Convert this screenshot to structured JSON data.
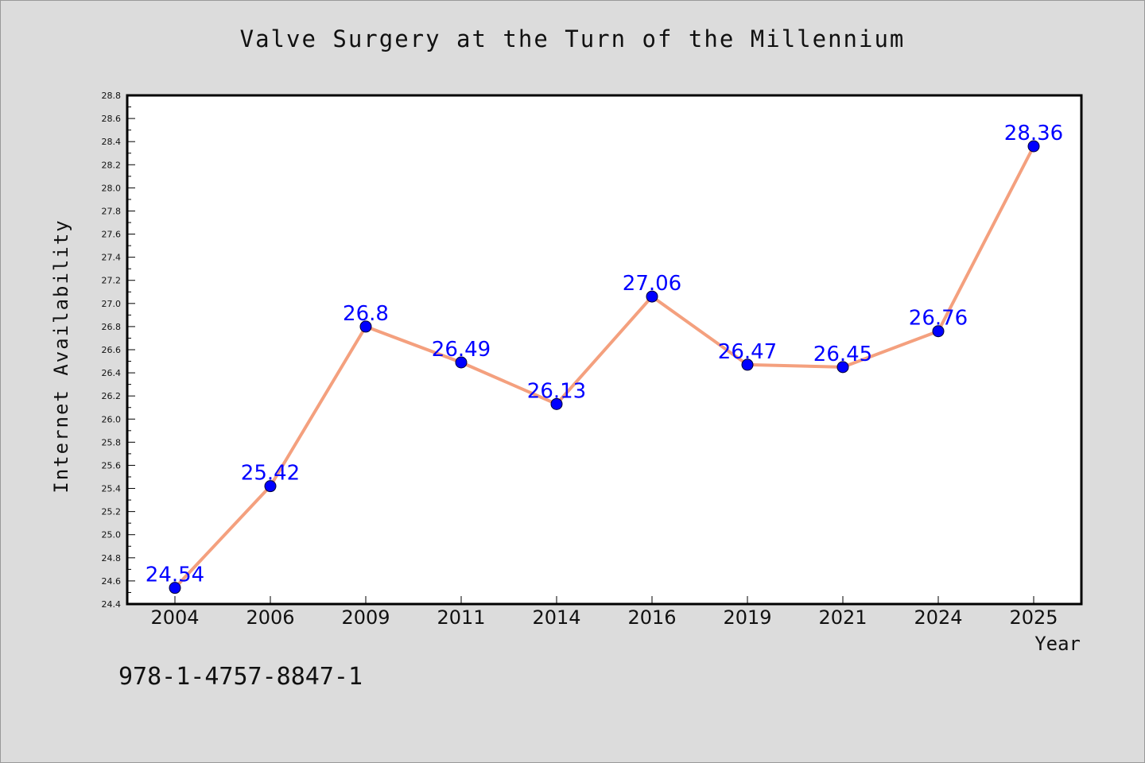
{
  "title": "Valve Surgery at the Turn of the Millennium",
  "footer_text": "978-1-4757-8847-1",
  "colors": {
    "background": "#dcdcdc",
    "plot_background": "#ffffff",
    "line": "#f4a07e",
    "marker": "#0000ff",
    "data_label": "#0000ff"
  },
  "chart_data": {
    "type": "line",
    "title": "Valve Surgery at the Turn of the Millennium",
    "xlabel": "Year",
    "ylabel": "Internet Availability",
    "categories": [
      "2004",
      "2006",
      "2009",
      "2011",
      "2014",
      "2016",
      "2019",
      "2021",
      "2024",
      "2025"
    ],
    "series": [
      {
        "values": [
          24.54,
          25.42,
          26.8,
          26.49,
          26.13,
          27.06,
          26.47,
          26.45,
          26.76,
          28.36
        ],
        "labels": [
          "24.54",
          "25.42",
          "26.8",
          "26.49",
          "26.13",
          "27.06",
          "26.47",
          "26.45",
          "26.76",
          "28.36"
        ]
      }
    ],
    "ylim": [
      24.4,
      28.8
    ],
    "y_ticks": [
      "24.4",
      "24.6",
      "24.8",
      "25.0",
      "25.2",
      "25.4",
      "25.6",
      "25.8",
      "26.0",
      "26.2",
      "26.4",
      "26.6",
      "26.8",
      "27.0",
      "27.2",
      "27.4",
      "27.6",
      "27.8",
      "28.0",
      "28.2",
      "28.4",
      "28.6",
      "28.8"
    ],
    "grid": false,
    "legend": "none"
  }
}
